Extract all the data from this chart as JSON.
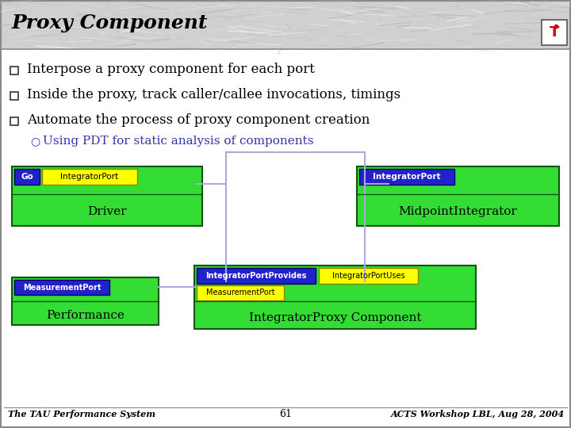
{
  "title": "Proxy Component",
  "title_fontsize": 18,
  "bg_color": "#ffffff",
  "bullets": [
    "Interpose a proxy component for each port",
    "Inside the proxy, track caller/callee invocations, timings",
    "Automate the process of proxy component creation"
  ],
  "sub_bullet": "Using PDT for static analysis of components",
  "sub_bullet_color": "#3333aa",
  "footer_left": "The TAU Performance System",
  "footer_center": "61",
  "footer_right": "ACTS Workshop LBL, Aug 28, 2004",
  "green_box": "#33dd33",
  "blue_box": "#2222cc",
  "yellow_box": "#ffff00",
  "connector_color": "#aaaadd",
  "header_color": "#cccccc",
  "border_color": "#888888"
}
